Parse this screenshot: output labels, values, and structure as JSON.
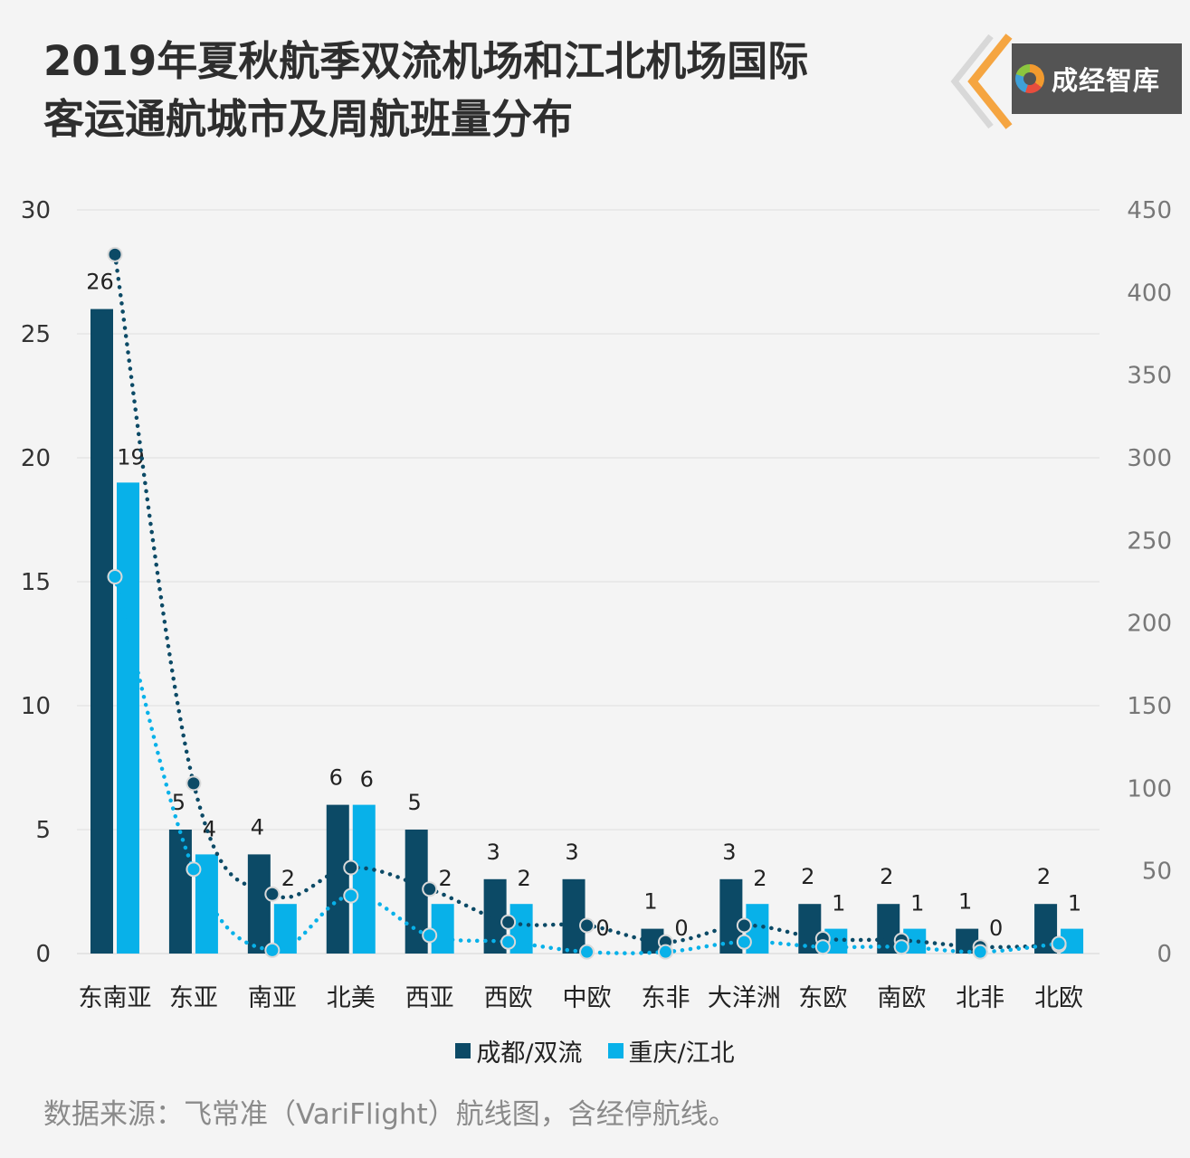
{
  "title": {
    "line1": "2019年夏秋航季双流机场和江北机场国际",
    "line2": "客运通航城市及周航班量分布"
  },
  "brand": {
    "name": "成经智库",
    "icon": "brand-logo-icon"
  },
  "colors": {
    "chengdu": "#0c4a66",
    "chongqing": "#08b1e9",
    "grid": "#dedede",
    "axis_left": "#333333",
    "axis_right": "#777777"
  },
  "chart_data": {
    "type": "bar",
    "categories": [
      "东南亚",
      "东亚",
      "南亚",
      "北美",
      "西亚",
      "西欧",
      "中欧",
      "东非",
      "大洋洲",
      "东欧",
      "南欧",
      "北非",
      "北欧"
    ],
    "series": [
      {
        "name": "成都/双流",
        "values": [
          26,
          5,
          4,
          6,
          5,
          3,
          3,
          1,
          3,
          2,
          2,
          1,
          2
        ]
      },
      {
        "name": "重庆/江北",
        "values": [
          19,
          4,
          2,
          6,
          2,
          2,
          0,
          0,
          2,
          1,
          1,
          0,
          1
        ]
      }
    ],
    "line_series": [
      {
        "values": [
          423,
          103,
          36,
          52,
          39,
          19,
          17,
          7,
          17,
          9,
          8,
          4,
          5
        ]
      },
      {
        "values": [
          228,
          51,
          2,
          35,
          11,
          7,
          1,
          1,
          7,
          4,
          4,
          1,
          6
        ]
      }
    ],
    "ylim": [
      0,
      30
    ],
    "yticks": [
      0,
      5,
      10,
      15,
      20,
      25,
      30
    ],
    "y2lim": [
      0,
      450
    ],
    "y2ticks": [
      0,
      50,
      100,
      150,
      200,
      250,
      300,
      350,
      400,
      450
    ],
    "grid": true,
    "legend_position": "bottom"
  },
  "source": "数据来源：飞常准（VariFlight）航线图，含经停航线。"
}
